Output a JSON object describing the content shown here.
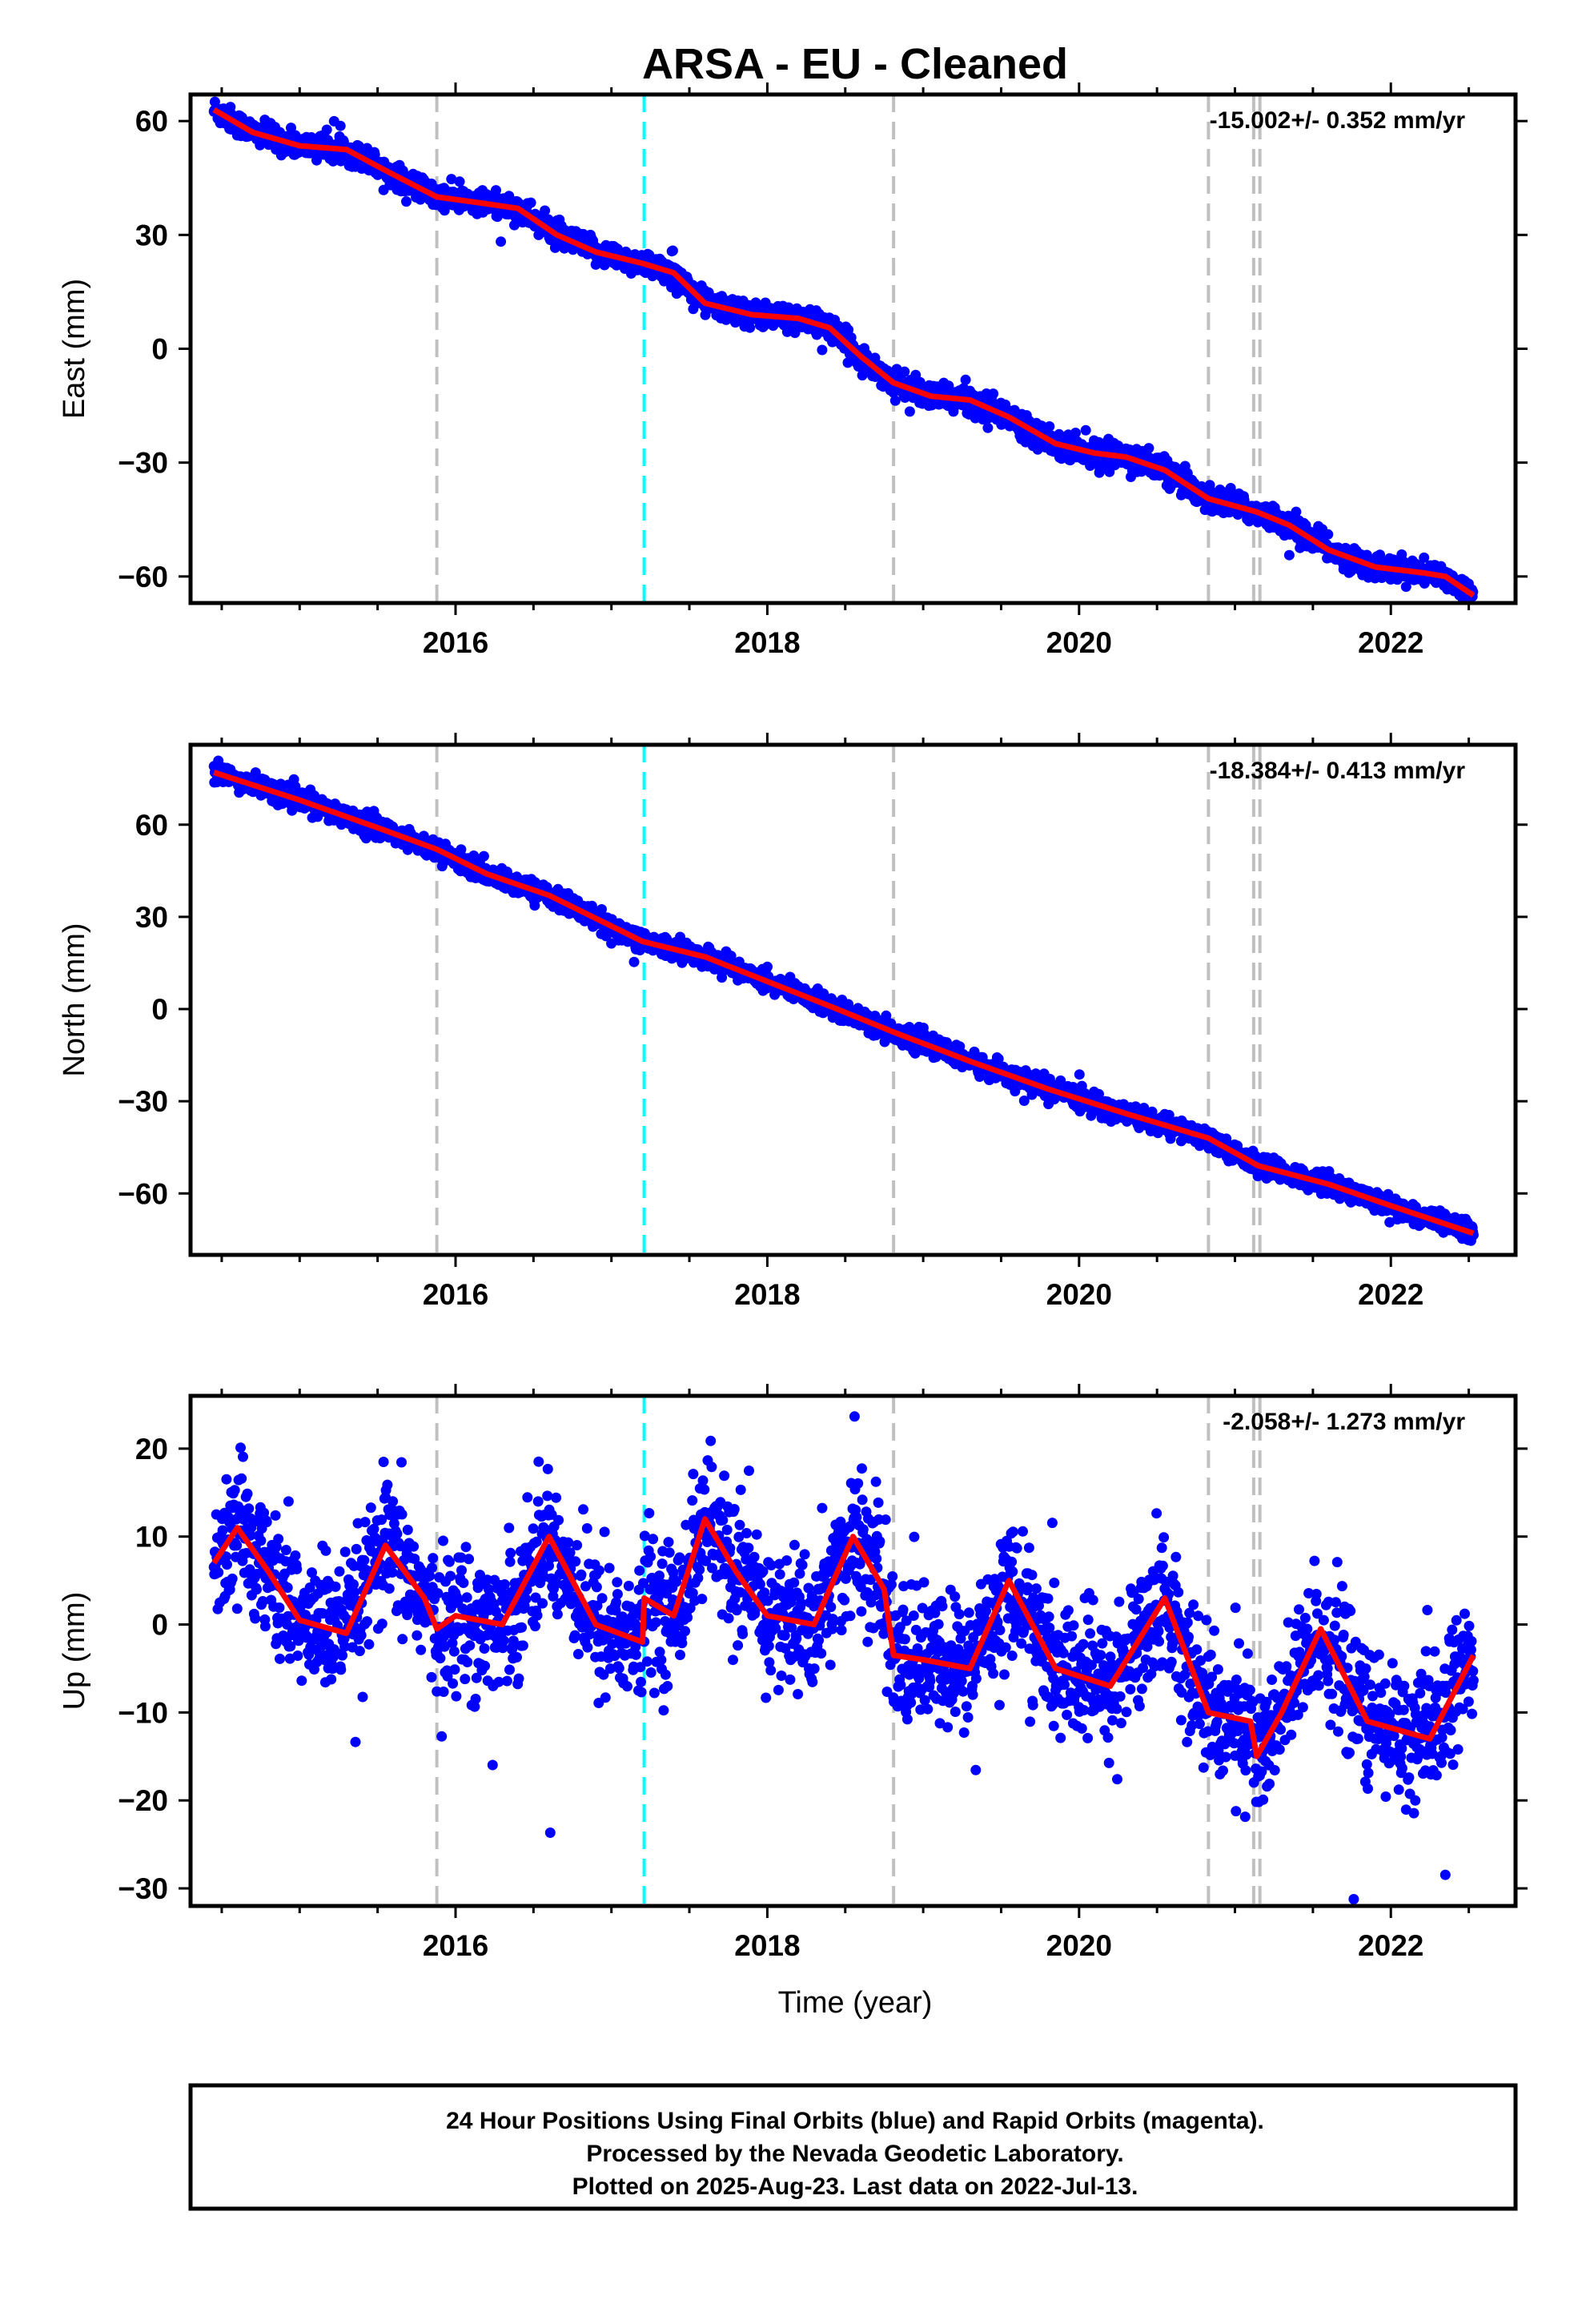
{
  "title": "ARSA  - EU - Cleaned",
  "xlabel": "Time (year)",
  "footer": {
    "line1": "24 Hour Positions Using Final Orbits (blue) and Rapid Orbits (magenta).",
    "line2": "Processed by the Nevada Geodetic Laboratory.",
    "line3": "Plotted on 2025-Aug-23. Last data on 2022-Jul-13."
  },
  "colors": {
    "points": "#0000ff",
    "fit": "#ff0000",
    "equipment_change": "#c0c0c0",
    "special_event": "#00ffff",
    "frame": "#000000"
  },
  "chart_data": [
    {
      "type": "scatter",
      "component": "East",
      "ylabel": "East (mm)",
      "rate_text": "-15.002+/- 0.352 mm/yr",
      "xlim": [
        2014.3,
        2022.8
      ],
      "ylim": [
        -67,
        67
      ],
      "xticks": [
        2016,
        2018,
        2020,
        2022
      ],
      "yticks": [
        60,
        30,
        0,
        -30,
        -60
      ],
      "ytick_labels": [
        "60",
        "30",
        "0",
        "−30",
        "−60"
      ],
      "x_start": 2014.45,
      "x_end": 2022.53,
      "offsets_gray": [
        2015.88,
        2018.81,
        2020.83,
        2021.12,
        2021.16
      ],
      "offsets_cyan": [
        2017.21
      ],
      "fit": {
        "x": [
          2014.45,
          2014.7,
          2015.0,
          2015.3,
          2015.55,
          2015.88,
          2016.15,
          2016.4,
          2016.65,
          2016.9,
          2017.2,
          2017.4,
          2017.6,
          2017.9,
          2018.2,
          2018.4,
          2018.6,
          2018.81,
          2019.05,
          2019.3,
          2019.55,
          2019.85,
          2020.1,
          2020.3,
          2020.55,
          2020.83,
          2021.14,
          2021.35,
          2021.6,
          2021.9,
          2022.2,
          2022.35,
          2022.53
        ],
        "y": [
          63,
          57,
          53.5,
          52.5,
          47,
          40,
          38.5,
          37,
          30,
          25.5,
          22.5,
          20,
          12,
          9,
          8,
          5.5,
          -2,
          -9,
          -12.5,
          -13.5,
          -18,
          -25,
          -27.5,
          -28.5,
          -32,
          -39.5,
          -43,
          -46.5,
          -53,
          -57.5,
          -59,
          -60,
          -65
        ]
      },
      "noise": 1.6
    },
    {
      "type": "scatter",
      "component": "North",
      "ylabel": "North (mm)",
      "rate_text": "-18.384+/- 0.413 mm/yr",
      "xlim": [
        2014.3,
        2022.8
      ],
      "ylim": [
        -80,
        86
      ],
      "xticks": [
        2016,
        2018,
        2020,
        2022
      ],
      "yticks": [
        60,
        30,
        0,
        -30,
        -60
      ],
      "ytick_labels": [
        "60",
        "30",
        "0",
        "−30",
        "−60"
      ],
      "x_start": 2014.45,
      "x_end": 2022.53,
      "offsets_gray": [
        2015.88,
        2018.81,
        2020.83,
        2021.12,
        2021.16
      ],
      "offsets_cyan": [
        2017.21
      ],
      "fit": {
        "x": [
          2014.45,
          2015.0,
          2015.5,
          2015.88,
          2016.2,
          2016.6,
          2017.2,
          2017.6,
          2018.0,
          2018.4,
          2018.81,
          2019.3,
          2019.8,
          2020.3,
          2020.83,
          2021.15,
          2021.6,
          2022.0,
          2022.53
        ],
        "y": [
          77,
          68,
          59,
          52,
          44,
          37,
          22,
          17,
          9,
          1,
          -7.5,
          -17,
          -26,
          -34,
          -42,
          -51,
          -57,
          -64,
          -73
        ]
      },
      "noise": 1.6
    },
    {
      "type": "scatter",
      "component": "Up",
      "ylabel": "Up (mm)",
      "rate_text": "-2.058+/- 1.273 mm/yr",
      "xlim": [
        2014.3,
        2022.8
      ],
      "ylim": [
        -32,
        26
      ],
      "xticks": [
        2016,
        2018,
        2020,
        2022
      ],
      "yticks": [
        20,
        10,
        0,
        -10,
        -20,
        -30
      ],
      "ytick_labels": [
        "20",
        "10",
        "0",
        "−10",
        "−20",
        "−30"
      ],
      "x_start": 2014.45,
      "x_end": 2022.53,
      "offsets_gray": [
        2015.88,
        2018.81,
        2020.83,
        2021.12,
        2021.16
      ],
      "offsets_cyan": [
        2017.21
      ],
      "fit": {
        "x": [
          2014.45,
          2014.6,
          2014.8,
          2015.0,
          2015.3,
          2015.55,
          2015.8,
          2015.88,
          2016.0,
          2016.3,
          2016.6,
          2016.9,
          2017.2,
          2017.21,
          2017.4,
          2017.6,
          2017.8,
          2018.0,
          2018.3,
          2018.55,
          2018.75,
          2018.81,
          2019.0,
          2019.3,
          2019.55,
          2019.85,
          2020.2,
          2020.55,
          2020.83,
          2021.1,
          2021.14,
          2021.3,
          2021.55,
          2021.85,
          2022.25,
          2022.53
        ],
        "y": [
          7,
          11,
          6,
          0.5,
          -1,
          9,
          3,
          -0.5,
          1,
          0,
          10,
          0,
          -2,
          3,
          1,
          12,
          6,
          1,
          0,
          10,
          4,
          -3.5,
          -4,
          -5,
          5,
          -5,
          -7,
          3,
          -10,
          -11,
          -15,
          -10,
          -0.5,
          -11,
          -13,
          -3.5
        ]
      },
      "noise": 3.8
    }
  ]
}
